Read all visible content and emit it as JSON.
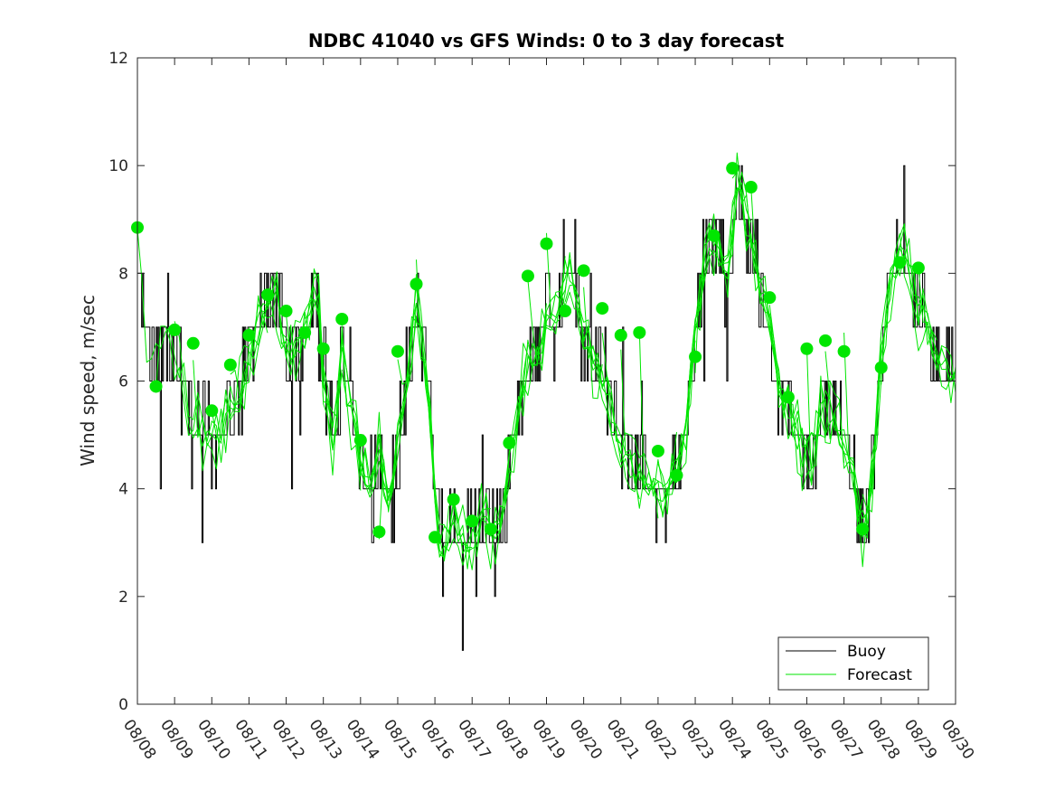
{
  "chart_data": {
    "type": "line",
    "title": "NDBC 41040 vs GFS Winds: 0 to 3 day forecast",
    "xlabel": "",
    "ylabel": "Wind speed, m/sec",
    "xlim": [
      0,
      22
    ],
    "ylim": [
      0,
      12
    ],
    "yticks": [
      0,
      2,
      4,
      6,
      8,
      10,
      12
    ],
    "xtick_labels": [
      "08/08",
      "08/09",
      "08/10",
      "08/11",
      "08/12",
      "08/13",
      "08/14",
      "08/15",
      "08/16",
      "08/17",
      "08/18",
      "08/19",
      "08/20",
      "08/21",
      "08/22",
      "08/23",
      "08/24",
      "08/25",
      "08/26",
      "08/27",
      "08/28",
      "08/29",
      "08/30"
    ],
    "legend": {
      "location": "bottom-right",
      "entries": [
        "Buoy",
        "Forecast"
      ]
    },
    "colors": {
      "buoy": "#000000",
      "forecast": "#00e600",
      "markers": "#00e600",
      "axes": "#262626"
    },
    "buoy_trend": [
      [
        0,
        8
      ],
      [
        0.2,
        7
      ],
      [
        0.5,
        6.2
      ],
      [
        0.8,
        7
      ],
      [
        1,
        6.5
      ],
      [
        1.2,
        6
      ],
      [
        1.5,
        5.2
      ],
      [
        2,
        5
      ],
      [
        2.5,
        5.5
      ],
      [
        2.8,
        6
      ],
      [
        3,
        6.5
      ],
      [
        3.5,
        7.5
      ],
      [
        3.8,
        7.5
      ],
      [
        4,
        6.8
      ],
      [
        4.3,
        6.5
      ],
      [
        4.5,
        7
      ],
      [
        4.8,
        8
      ],
      [
        5,
        6
      ],
      [
        5.3,
        5
      ],
      [
        5.5,
        6.5
      ],
      [
        5.8,
        5.5
      ],
      [
        6,
        4.5
      ],
      [
        6.3,
        3.8
      ],
      [
        6.5,
        4.8
      ],
      [
        6.8,
        3.5
      ],
      [
        7,
        5
      ],
      [
        7.3,
        6.3
      ],
      [
        7.5,
        7.5
      ],
      [
        7.8,
        6
      ],
      [
        8,
        4
      ],
      [
        8.2,
        2.8
      ],
      [
        8.5,
        3.5
      ],
      [
        8.8,
        3
      ],
      [
        9,
        3
      ],
      [
        9.3,
        3.5
      ],
      [
        9.6,
        3
      ],
      [
        9.8,
        3.5
      ],
      [
        10,
        4.5
      ],
      [
        10.3,
        5.5
      ],
      [
        10.5,
        6.5
      ],
      [
        10.8,
        6.5
      ],
      [
        11,
        7.5
      ],
      [
        11.3,
        7.2
      ],
      [
        11.6,
        8.3
      ],
      [
        12,
        7
      ],
      [
        12.3,
        6.5
      ],
      [
        12.6,
        6
      ],
      [
        12.9,
        5
      ],
      [
        13.2,
        4.5
      ],
      [
        13.5,
        4.2
      ],
      [
        13.8,
        4
      ],
      [
        14.2,
        3.8
      ],
      [
        14.6,
        4.5
      ],
      [
        14.8,
        5.5
      ],
      [
        15,
        7
      ],
      [
        15.3,
        8.3
      ],
      [
        15.6,
        8.5
      ],
      [
        15.9,
        8
      ],
      [
        16.1,
        9.5
      ],
      [
        16.3,
        9.3
      ],
      [
        16.6,
        8
      ],
      [
        16.9,
        7.3
      ],
      [
        17.2,
        6
      ],
      [
        17.5,
        5.5
      ],
      [
        17.8,
        5
      ],
      [
        18.1,
        4.5
      ],
      [
        18.4,
        5.5
      ],
      [
        18.7,
        5.5
      ],
      [
        19,
        5
      ],
      [
        19.2,
        4.3
      ],
      [
        19.4,
        3.5
      ],
      [
        19.6,
        3.3
      ],
      [
        19.8,
        4.5
      ],
      [
        20,
        6.5
      ],
      [
        20.3,
        8
      ],
      [
        20.6,
        8.5
      ],
      [
        20.9,
        7.5
      ],
      [
        21.2,
        7
      ],
      [
        21.5,
        6.5
      ],
      [
        21.8,
        6
      ],
      [
        22,
        6.2
      ]
    ],
    "forecast_points": [
      [
        0,
        8.85
      ],
      [
        0.5,
        5.9
      ],
      [
        1,
        6.95
      ],
      [
        1.5,
        6.7
      ],
      [
        2,
        5.45
      ],
      [
        2.5,
        6.3
      ],
      [
        3,
        6.85
      ],
      [
        3.5,
        7.6
      ],
      [
        4,
        7.3
      ],
      [
        4.5,
        6.9
      ],
      [
        5,
        6.6
      ],
      [
        5.5,
        7.15
      ],
      [
        6,
        4.9
      ],
      [
        6.5,
        3.2
      ],
      [
        7,
        6.55
      ],
      [
        7.5,
        7.8
      ],
      [
        8,
        3.1
      ],
      [
        8.5,
        3.8
      ],
      [
        9,
        3.4
      ],
      [
        9.5,
        3.25
      ],
      [
        10,
        4.85
      ],
      [
        10.5,
        7.95
      ],
      [
        11,
        8.55
      ],
      [
        11.5,
        7.3
      ],
      [
        12,
        8.05
      ],
      [
        12.5,
        7.35
      ],
      [
        13,
        6.85
      ],
      [
        13.5,
        6.9
      ],
      [
        14,
        4.7
      ],
      [
        14.5,
        4.25
      ],
      [
        15,
        6.45
      ],
      [
        15.5,
        8.7
      ],
      [
        16,
        9.95
      ],
      [
        16.5,
        9.6
      ],
      [
        17,
        7.55
      ],
      [
        17.5,
        5.7
      ],
      [
        18,
        6.6
      ],
      [
        18.5,
        6.75
      ],
      [
        19,
        6.55
      ],
      [
        19.5,
        3.25
      ],
      [
        20,
        6.25
      ],
      [
        20.5,
        8.2
      ],
      [
        21,
        8.1
      ]
    ]
  }
}
